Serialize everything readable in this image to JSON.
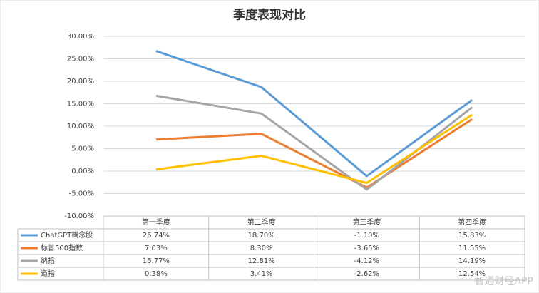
{
  "chart_data": {
    "type": "line",
    "title": "季度表现对比",
    "categories": [
      "第一季度",
      "第二季度",
      "第三季度",
      "第四季度"
    ],
    "series": [
      {
        "name": "ChatGPT概念股",
        "color": "#5b9bd5",
        "values": [
          26.74,
          18.7,
          -1.1,
          15.83
        ],
        "value_labels": [
          "26.74%",
          "18.70%",
          "-1.10%",
          "15.83%"
        ]
      },
      {
        "name": "标普500指数",
        "color": "#ed7d31",
        "values": [
          7.03,
          8.3,
          -3.65,
          11.55
        ],
        "value_labels": [
          "7.03%",
          "8.30%",
          "-3.65%",
          "11.55%"
        ]
      },
      {
        "name": "纳指",
        "color": "#a5a5a5",
        "values": [
          16.77,
          12.81,
          -4.12,
          14.19
        ],
        "value_labels": [
          "16.77%",
          "12.81%",
          "-4.12%",
          "14.19%"
        ]
      },
      {
        "name": "道指",
        "color": "#ffc000",
        "values": [
          0.38,
          3.41,
          -2.62,
          12.54
        ],
        "value_labels": [
          "0.38%",
          "3.41%",
          "-2.62%",
          "12.54%"
        ]
      }
    ],
    "ylim": [
      -10,
      30
    ],
    "yticks": [
      {
        "value": -10,
        "label": "-10.00%"
      },
      {
        "value": -5,
        "label": "-5.00%"
      },
      {
        "value": 0,
        "label": "0.00%"
      },
      {
        "value": 5,
        "label": "5.00%"
      },
      {
        "value": 10,
        "label": "10.00%"
      },
      {
        "value": 15,
        "label": "15.00%"
      },
      {
        "value": 20,
        "label": "20.00%"
      },
      {
        "value": 25,
        "label": "25.00%"
      },
      {
        "value": 30,
        "label": "30.00%"
      }
    ],
    "grid": true,
    "watermark": "智通财经APP"
  }
}
